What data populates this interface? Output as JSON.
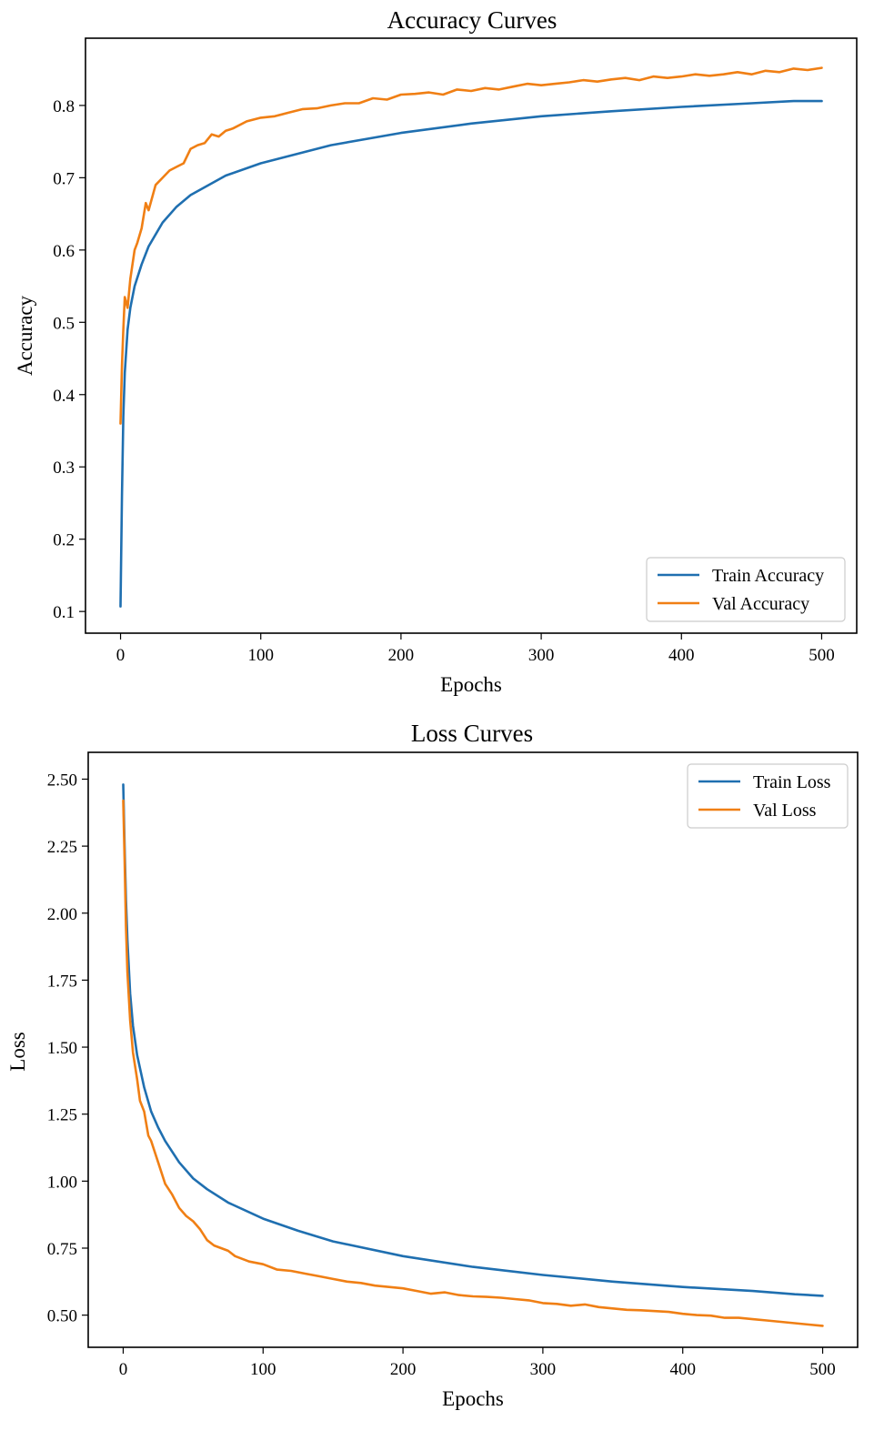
{
  "colors": {
    "train": "#1f6fb0",
    "val": "#f07f14"
  },
  "chart_data": [
    {
      "id": "accuracy",
      "type": "line",
      "title": "Accuracy Curves",
      "xlabel": "Epochs",
      "ylabel": "Accuracy",
      "xlim": [
        -25,
        525
      ],
      "ylim": [
        0.07,
        0.893
      ],
      "xticks": [
        0,
        100,
        200,
        300,
        400,
        500
      ],
      "xtick_labels": [
        "0",
        "100",
        "200",
        "300",
        "400",
        "500"
      ],
      "yticks": [
        0.1,
        0.2,
        0.3,
        0.4,
        0.5,
        0.6,
        0.7,
        0.8
      ],
      "ytick_labels": [
        "0.1",
        "0.2",
        "0.3",
        "0.4",
        "0.5",
        "0.6",
        "0.7",
        "0.8"
      ],
      "grid": false,
      "legend": "lower-right",
      "series": [
        {
          "name": "Train Accuracy",
          "color_key": "train",
          "x": [
            0,
            1,
            2,
            3,
            5,
            7,
            10,
            15,
            20,
            30,
            40,
            50,
            75,
            100,
            150,
            200,
            250,
            300,
            350,
            400,
            450,
            480,
            500
          ],
          "y": [
            0.107,
            0.26,
            0.37,
            0.43,
            0.49,
            0.52,
            0.55,
            0.58,
            0.605,
            0.638,
            0.66,
            0.676,
            0.703,
            0.72,
            0.745,
            0.762,
            0.775,
            0.785,
            0.792,
            0.798,
            0.803,
            0.806,
            0.806
          ]
        },
        {
          "name": "Val Accuracy",
          "color_key": "val",
          "x": [
            0,
            1,
            2,
            3,
            5,
            7,
            10,
            12,
            15,
            18,
            20,
            25,
            30,
            35,
            40,
            45,
            50,
            55,
            60,
            65,
            70,
            75,
            80,
            90,
            100,
            110,
            120,
            130,
            140,
            150,
            160,
            170,
            180,
            190,
            200,
            210,
            220,
            230,
            240,
            250,
            260,
            270,
            280,
            290,
            300,
            310,
            320,
            330,
            340,
            350,
            360,
            370,
            380,
            390,
            400,
            410,
            420,
            430,
            440,
            450,
            460,
            470,
            480,
            490,
            500
          ],
          "y": [
            0.36,
            0.44,
            0.49,
            0.535,
            0.52,
            0.56,
            0.6,
            0.61,
            0.63,
            0.665,
            0.655,
            0.69,
            0.7,
            0.71,
            0.715,
            0.72,
            0.74,
            0.745,
            0.748,
            0.76,
            0.757,
            0.765,
            0.768,
            0.778,
            0.783,
            0.785,
            0.79,
            0.795,
            0.796,
            0.8,
            0.803,
            0.803,
            0.81,
            0.808,
            0.815,
            0.816,
            0.818,
            0.815,
            0.822,
            0.82,
            0.824,
            0.822,
            0.826,
            0.83,
            0.828,
            0.83,
            0.832,
            0.835,
            0.833,
            0.836,
            0.838,
            0.835,
            0.84,
            0.838,
            0.84,
            0.843,
            0.841,
            0.843,
            0.846,
            0.843,
            0.848,
            0.846,
            0.851,
            0.849,
            0.852
          ]
        }
      ]
    },
    {
      "id": "loss",
      "type": "line",
      "title": "Loss Curves",
      "xlabel": "Epochs",
      "ylabel": "Loss",
      "xlim": [
        -25,
        525
      ],
      "ylim": [
        0.38,
        2.6
      ],
      "xticks": [
        0,
        100,
        200,
        300,
        400,
        500
      ],
      "xtick_labels": [
        "0",
        "100",
        "200",
        "300",
        "400",
        "500"
      ],
      "yticks": [
        0.5,
        0.75,
        1.0,
        1.25,
        1.5,
        1.75,
        2.0,
        2.25,
        2.5
      ],
      "ytick_labels": [
        "0.50",
        "0.75",
        "1.00",
        "1.25",
        "1.50",
        "1.75",
        "2.00",
        "2.25",
        "2.50"
      ],
      "grid": false,
      "legend": "upper-right",
      "series": [
        {
          "name": "Train Loss",
          "color_key": "train",
          "x": [
            0,
            1,
            2,
            3,
            5,
            7,
            10,
            15,
            20,
            25,
            30,
            40,
            50,
            60,
            75,
            100,
            125,
            150,
            200,
            250,
            300,
            350,
            400,
            450,
            480,
            500
          ],
          "y": [
            2.48,
            2.25,
            2.05,
            1.9,
            1.7,
            1.58,
            1.47,
            1.35,
            1.26,
            1.2,
            1.15,
            1.07,
            1.01,
            0.97,
            0.92,
            0.86,
            0.815,
            0.775,
            0.72,
            0.68,
            0.65,
            0.625,
            0.605,
            0.59,
            0.578,
            0.572
          ]
        },
        {
          "name": "Val Loss",
          "color_key": "val",
          "x": [
            0,
            1,
            2,
            3,
            5,
            7,
            10,
            12,
            15,
            18,
            20,
            25,
            30,
            35,
            40,
            45,
            50,
            55,
            60,
            65,
            70,
            75,
            80,
            90,
            100,
            110,
            120,
            130,
            140,
            150,
            160,
            170,
            180,
            190,
            200,
            210,
            220,
            230,
            240,
            250,
            260,
            270,
            280,
            290,
            300,
            310,
            320,
            330,
            340,
            350,
            360,
            370,
            380,
            390,
            400,
            410,
            420,
            430,
            440,
            450,
            460,
            470,
            480,
            490,
            500
          ],
          "y": [
            2.42,
            2.2,
            1.95,
            1.78,
            1.6,
            1.48,
            1.38,
            1.3,
            1.26,
            1.17,
            1.15,
            1.07,
            0.99,
            0.95,
            0.9,
            0.87,
            0.85,
            0.82,
            0.78,
            0.76,
            0.75,
            0.74,
            0.72,
            0.7,
            0.69,
            0.67,
            0.665,
            0.655,
            0.645,
            0.635,
            0.625,
            0.62,
            0.61,
            0.605,
            0.6,
            0.59,
            0.58,
            0.585,
            0.575,
            0.57,
            0.568,
            0.565,
            0.56,
            0.555,
            0.545,
            0.542,
            0.535,
            0.54,
            0.53,
            0.525,
            0.52,
            0.518,
            0.515,
            0.512,
            0.505,
            0.5,
            0.498,
            0.49,
            0.49,
            0.485,
            0.48,
            0.475,
            0.47,
            0.465,
            0.46
          ]
        }
      ]
    }
  ]
}
